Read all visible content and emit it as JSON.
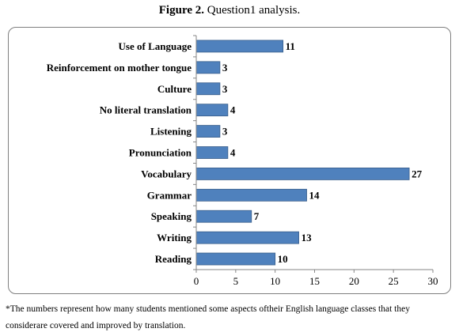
{
  "figure": {
    "label": "Figure 2.",
    "caption": " Question1 analysis."
  },
  "chart_data": {
    "type": "bar",
    "orientation": "horizontal",
    "categories": [
      "Use of Language",
      "Reinforcement on mother tongue",
      "Culture",
      "No literal translation",
      "Listening",
      "Pronunciation",
      "Vocabulary",
      "Grammar",
      "Speaking",
      "Writing",
      "Reading"
    ],
    "values": [
      11,
      3,
      3,
      4,
      3,
      4,
      27,
      14,
      7,
      13,
      10
    ],
    "xlim": [
      0,
      30
    ],
    "xticks": [
      0,
      5,
      10,
      15,
      20,
      25,
      30
    ],
    "grid": false,
    "legend": "none",
    "bar_color": "#4f81bd",
    "bar_border": "#385d8a"
  },
  "footnote": {
    "line1": "*The numbers represent how many students mentioned some aspects oftheir English language classes that they",
    "line2": "considerare covered and improved by translation."
  }
}
